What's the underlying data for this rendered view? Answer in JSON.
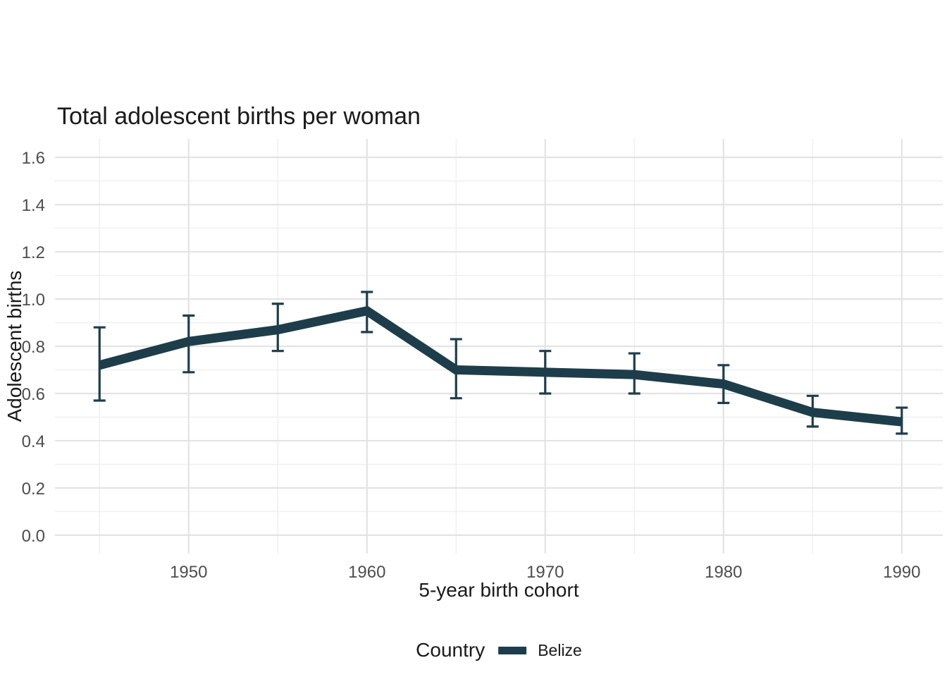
{
  "chart_data": {
    "type": "line",
    "title": "Total adolescent births per woman",
    "xlabel": "5-year birth cohort",
    "ylabel": "Adolescent births",
    "legend": {
      "title": "Country",
      "position": "bottom",
      "entries": [
        {
          "label": "Belize",
          "color": "#1e3d4b"
        }
      ]
    },
    "x": [
      1945,
      1950,
      1955,
      1960,
      1965,
      1970,
      1975,
      1980,
      1985,
      1990
    ],
    "series": [
      {
        "name": "Belize",
        "color": "#1e3d4b",
        "values": [
          0.72,
          0.82,
          0.87,
          0.95,
          0.7,
          0.69,
          0.68,
          0.64,
          0.52,
          0.48
        ],
        "err_low": [
          0.57,
          0.69,
          0.78,
          0.86,
          0.58,
          0.6,
          0.6,
          0.56,
          0.46,
          0.43
        ],
        "err_high": [
          0.88,
          0.93,
          0.98,
          1.03,
          0.83,
          0.78,
          0.77,
          0.72,
          0.59,
          0.54
        ]
      }
    ],
    "x_major_ticks": [
      1950,
      1960,
      1970,
      1980,
      1990
    ],
    "x_minor_ticks": [
      1945,
      1955,
      1965,
      1975,
      1985
    ],
    "y_major_ticks": [
      0.0,
      0.2,
      0.4,
      0.6,
      0.8,
      1.0,
      1.2,
      1.4,
      1.6
    ],
    "y_minor_ticks": [
      0.1,
      0.3,
      0.5,
      0.7,
      0.9,
      1.1,
      1.3,
      1.5
    ],
    "xlim": [
      1942.5,
      1992.3
    ],
    "ylim": [
      -0.078,
      1.678
    ],
    "grid": true,
    "legend_position": "bottom",
    "colors": {
      "grid_major": "#e3e3e3",
      "grid_minor": "#f0f0f0",
      "tick_label": "#4d4d4d",
      "text": "#1a1a1a",
      "background": "#ffffff"
    }
  }
}
